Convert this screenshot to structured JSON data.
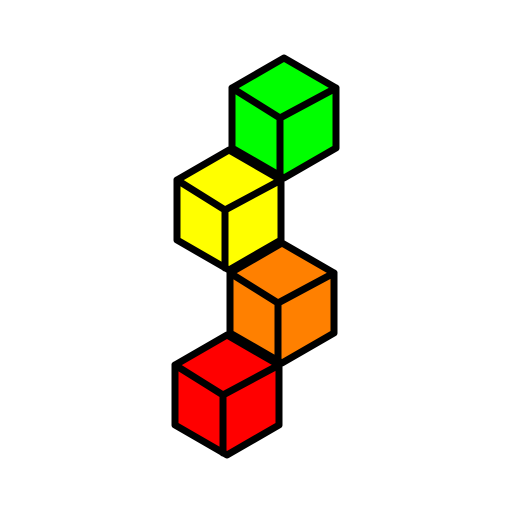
{
  "illustration": {
    "subject": "stacked-cubes",
    "outline_color": "#000000",
    "background_color": "#ffffff",
    "cubes": [
      {
        "name": "green-cube",
        "color": "#00ff00"
      },
      {
        "name": "yellow-cube",
        "color": "#ffff00"
      },
      {
        "name": "orange-cube",
        "color": "#ff8000"
      },
      {
        "name": "red-cube",
        "color": "#ff0000"
      }
    ]
  }
}
